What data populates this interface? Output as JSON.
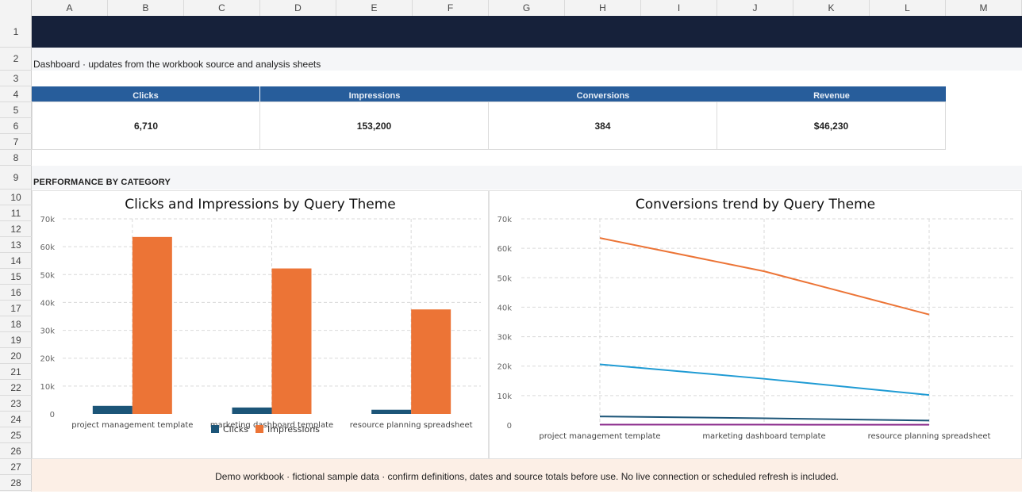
{
  "columns": [
    "A",
    "B",
    "C",
    "D",
    "E",
    "F",
    "G",
    "H",
    "I",
    "J",
    "K",
    "L",
    "M"
  ],
  "rows": [
    "1",
    "2",
    "3",
    "4",
    "5",
    "6",
    "7",
    "8",
    "9",
    "10",
    "11",
    "12",
    "13",
    "14",
    "15",
    "16",
    "17",
    "18",
    "19",
    "20",
    "21",
    "22",
    "23",
    "24",
    "25",
    "26",
    "27",
    "28"
  ],
  "subtitle": "Dashboard · updates from the workbook source and analysis sheets",
  "kpis": [
    {
      "label": "Clicks",
      "value": "6,710"
    },
    {
      "label": "Impressions",
      "value": "153,200"
    },
    {
      "label": "Conversions",
      "value": "384"
    },
    {
      "label": "Revenue",
      "value": "$46,230"
    }
  ],
  "section_title": "PERFORMANCE BY CATEGORY",
  "colors": {
    "clicks": "#1c5578",
    "impressions": "#ec7436",
    "line_blue": "#1f9bd4",
    "line_purple": "#8b2c8c"
  },
  "chart_data": [
    {
      "type": "bar",
      "title": "Clicks and Impressions by Query Theme",
      "categories": [
        "project management template",
        "marketing dashboard template",
        "resource planning spreadsheet"
      ],
      "y_ticks": [
        "0",
        "10k",
        "20k",
        "30k",
        "40k",
        "50k",
        "60k",
        "70k"
      ],
      "ylim": [
        0,
        70000
      ],
      "grid": true,
      "legend": "bottom",
      "series": [
        {
          "name": "Clicks",
          "values": [
            2900,
            2300,
            1500
          ]
        },
        {
          "name": "Impressions",
          "values": [
            63500,
            52200,
            37500
          ]
        }
      ]
    },
    {
      "type": "line",
      "title": "Conversions trend by Query Theme",
      "categories": [
        "project management template",
        "marketing dashboard template",
        "resource planning spreadsheet"
      ],
      "y_ticks": [
        "0",
        "10k",
        "20k",
        "30k",
        "40k",
        "50k",
        "60k",
        "70k"
      ],
      "ylim": [
        0,
        70000
      ],
      "grid": true,
      "series": [
        {
          "values": [
            63500,
            52200,
            37500
          ]
        },
        {
          "values": [
            20600,
            15700,
            10200
          ]
        },
        {
          "values": [
            2900,
            2300,
            1500
          ]
        },
        {
          "values": [
            150,
            120,
            90
          ]
        }
      ]
    }
  ],
  "footer": "Demo workbook · fictional sample data · confirm definitions, dates and source totals before use. No live connection or scheduled refresh is included."
}
